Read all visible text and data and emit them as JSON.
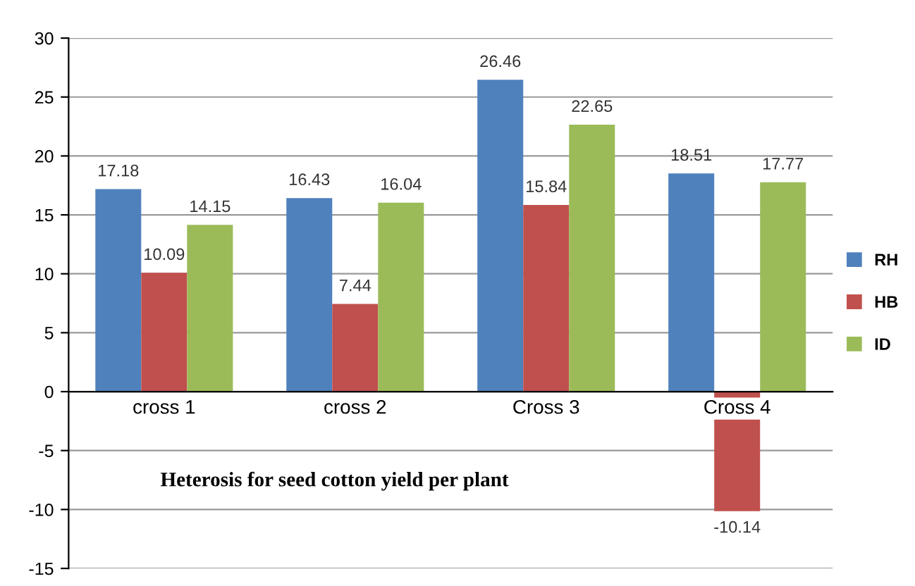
{
  "chart_data": {
    "type": "bar",
    "title": "Heterosis for seed cotton yield per plant",
    "categories": [
      "cross 1",
      "cross 2",
      "Cross 3",
      "Cross 4"
    ],
    "series": [
      {
        "name": "RH",
        "color": "#4f81bd",
        "values": [
          17.18,
          16.43,
          26.46,
          18.51
        ]
      },
      {
        "name": "HB",
        "color": "#c0504d",
        "values": [
          10.09,
          7.44,
          15.84,
          -10.14
        ]
      },
      {
        "name": "ID",
        "color": "#9bbb59",
        "values": [
          14.15,
          16.04,
          22.65,
          17.77
        ]
      }
    ],
    "ylim": [
      -15,
      30
    ],
    "yticks": [
      -15,
      -10,
      -5,
      0,
      5,
      10,
      15,
      20,
      25,
      30
    ],
    "grid": "y",
    "legend": "right",
    "data_labels": true
  }
}
